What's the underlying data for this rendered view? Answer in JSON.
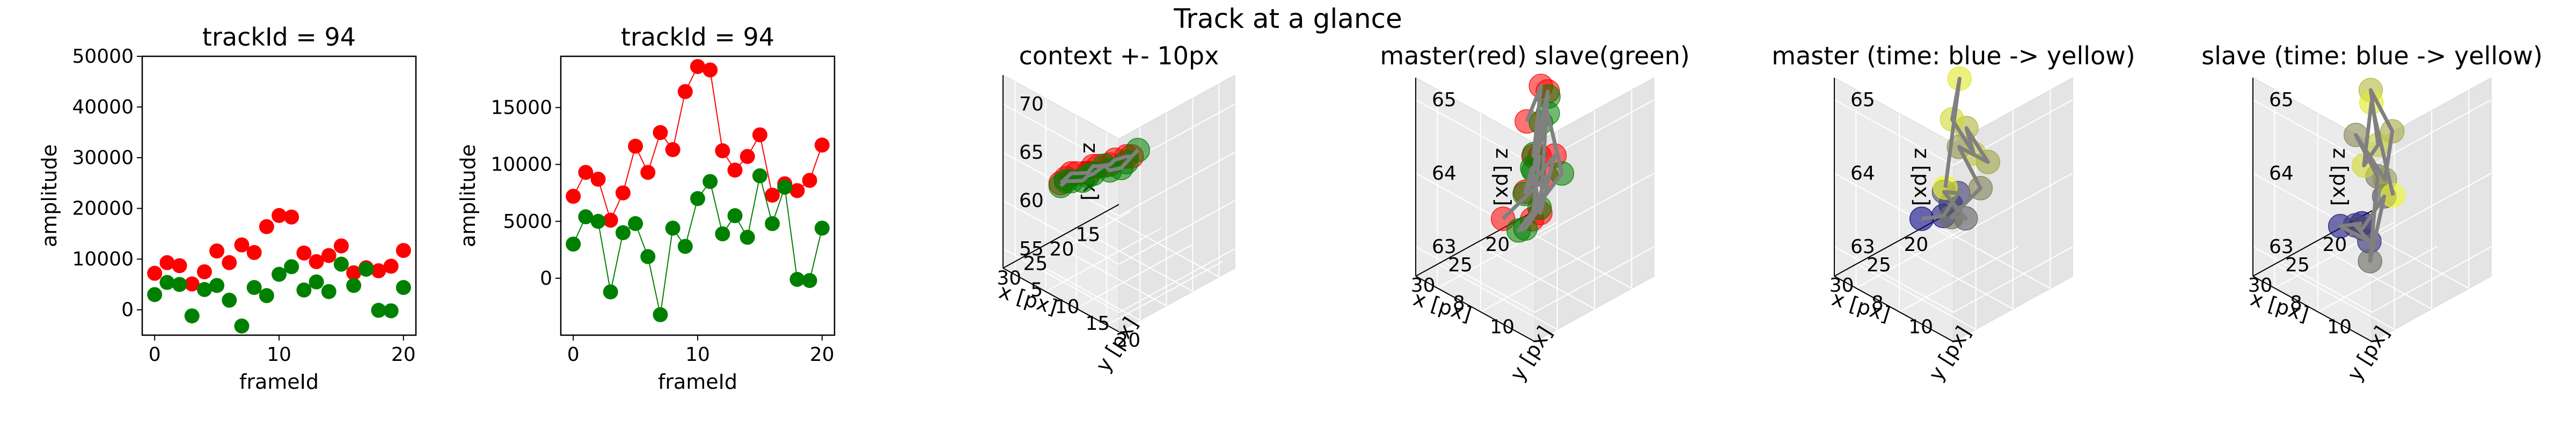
{
  "figure": {
    "suptitle": "Track at a glance"
  },
  "colors": {
    "master": "#ff0000",
    "slave": "#008000",
    "axis": "#000000",
    "pane": "#ebebeb",
    "line3d": "#808080"
  },
  "chart_data": [
    {
      "type": "scatter",
      "title": "trackId = 94",
      "xlabel": "frameId",
      "ylabel": "amplitude",
      "xlim": [
        -1,
        21
      ],
      "ylim": [
        -5000,
        50000
      ],
      "xticks": [
        "0",
        "10",
        "20"
      ],
      "yticks": [
        "0",
        "10000",
        "20000",
        "30000",
        "40000",
        "50000"
      ],
      "x": [
        0,
        1,
        2,
        3,
        4,
        5,
        6,
        7,
        8,
        9,
        10,
        11,
        12,
        13,
        14,
        15,
        16,
        17,
        18,
        19,
        20
      ],
      "series": [
        {
          "name": "master",
          "color": "#ff0000",
          "values": [
            7200,
            9300,
            8700,
            5100,
            7500,
            11600,
            9300,
            12800,
            11300,
            16400,
            18600,
            18300,
            11200,
            9500,
            10700,
            12600,
            7300,
            8300,
            7700,
            8600,
            11700
          ]
        },
        {
          "name": "slave",
          "color": "#008000",
          "values": [
            3000,
            5400,
            5000,
            -1200,
            4000,
            4800,
            1900,
            -3200,
            4400,
            2800,
            7000,
            8500,
            3900,
            5500,
            3600,
            9000,
            4800,
            8000,
            -100,
            -200,
            4400
          ]
        }
      ]
    },
    {
      "type": "line",
      "title": "trackId = 94",
      "xlabel": "frameId",
      "ylabel": "amplitude",
      "xlim": [
        -1,
        21
      ],
      "ylim": [
        -5000,
        19500
      ],
      "xticks": [
        "0",
        "10",
        "20"
      ],
      "yticks": [
        "0",
        "5000",
        "10000",
        "15000"
      ],
      "x": [
        0,
        1,
        2,
        3,
        4,
        5,
        6,
        7,
        8,
        9,
        10,
        11,
        12,
        13,
        14,
        15,
        16,
        17,
        18,
        19,
        20
      ],
      "series": [
        {
          "name": "master",
          "color": "#ff0000",
          "values": [
            7200,
            9300,
            8700,
            5100,
            7500,
            11600,
            9300,
            12800,
            11300,
            16400,
            18600,
            18300,
            11200,
            9500,
            10700,
            12600,
            7300,
            8300,
            7700,
            8600,
            11700
          ]
        },
        {
          "name": "slave",
          "color": "#008000",
          "values": [
            3000,
            5400,
            5000,
            -1200,
            4000,
            4800,
            1900,
            -3200,
            4400,
            2800,
            7000,
            8500,
            3900,
            5500,
            3600,
            9000,
            4800,
            8000,
            -100,
            -200,
            4400
          ]
        }
      ]
    },
    {
      "type": "scatter",
      "title": "context +- 10px",
      "xlabel": "x [px]",
      "ylabel": "y [px]",
      "zlabel": "z [px]",
      "xticks": [
        "15",
        "20",
        "25",
        "30"
      ],
      "yticks": [
        "5",
        "10",
        "15",
        "20"
      ],
      "zticks": [
        "55",
        "60",
        "65",
        "70"
      ],
      "xlim": [
        12,
        34
      ],
      "ylim": [
        3,
        22
      ],
      "zlim": [
        53,
        73
      ],
      "series": [
        {
          "name": "master",
          "color": "#ff0000",
          "points": [
            [
              20,
              12,
              63.5
            ],
            [
              21,
              12,
              63.8
            ],
            [
              22,
              11,
              63.4
            ],
            [
              23,
              11,
              63.2
            ],
            [
              24,
              10,
              63.0
            ],
            [
              25,
              10,
              63.3
            ],
            [
              26,
              10,
              62.9
            ],
            [
              27,
              9,
              62.8
            ],
            [
              28,
              9,
              63.1
            ],
            [
              29,
              9,
              62.9
            ],
            [
              30,
              9,
              62.7
            ]
          ]
        },
        {
          "name": "slave",
          "color": "#008000",
          "points": [
            [
              20,
              13,
              64.5
            ],
            [
              21,
              12,
              63.2
            ],
            [
              22,
              12,
              62.9
            ],
            [
              23,
              11,
              62.6
            ],
            [
              24,
              11,
              63.4
            ],
            [
              25,
              10,
              62.5
            ],
            [
              26,
              10,
              62.6
            ],
            [
              27,
              10,
              62.4
            ],
            [
              28,
              9,
              62.3
            ],
            [
              29,
              9,
              62.6
            ],
            [
              30,
              9,
              62.4
            ]
          ]
        }
      ]
    },
    {
      "type": "scatter",
      "title": "master(red) slave(green)",
      "xlabel": "x [px]",
      "ylabel": "y [px]",
      "zlabel": "z [px]",
      "xticks": [
        "20",
        "25",
        "30"
      ],
      "yticks": [
        "8",
        "10"
      ],
      "zticks": [
        "63",
        "64",
        "65"
      ],
      "xlim": [
        17,
        33
      ],
      "ylim": [
        7,
        12.5
      ],
      "zlim": [
        62.6,
        65.3
      ],
      "series": [
        {
          "name": "master",
          "color": "#ff0000",
          "points": [
            [
              21,
              8,
              64.2
            ],
            [
              22,
              9,
              64.9
            ],
            [
              23,
              9,
              64.0
            ],
            [
              24,
              10,
              65.1
            ],
            [
              25,
              10,
              63.5
            ],
            [
              26,
              11,
              64.5
            ],
            [
              27,
              10,
              63.9
            ],
            [
              28,
              11,
              64.6
            ],
            [
              29,
              11,
              63.8
            ],
            [
              30,
              12,
              64.6
            ],
            [
              30,
              10,
              63.7
            ]
          ]
        },
        {
          "name": "slave",
          "color": "#008000",
          "points": [
            [
              20,
              8,
              63.7
            ],
            [
              21,
              9,
              64.7
            ],
            [
              22,
              9,
              64.4
            ],
            [
              23,
              9,
              63.8
            ],
            [
              24,
              10,
              64.8
            ],
            [
              25,
              11,
              64.2
            ],
            [
              25,
              9,
              63.1
            ],
            [
              27,
              10,
              63.4
            ],
            [
              28,
              11,
              63.9
            ],
            [
              29,
              11,
              64.5
            ],
            [
              30,
              11,
              64.2
            ]
          ]
        }
      ]
    },
    {
      "type": "scatter",
      "title": "master (time: blue -> yellow)",
      "xlabel": "x [px]",
      "ylabel": "y [px]",
      "zlabel": "z [px]",
      "xticks": [
        "20",
        "25",
        "30"
      ],
      "yticks": [
        "8",
        "10"
      ],
      "zticks": [
        "63",
        "64",
        "65"
      ],
      "xlim": [
        17,
        33
      ],
      "ylim": [
        7,
        12.5
      ],
      "zlim": [
        62.6,
        65.3
      ],
      "color_start": "#0d0887",
      "color_end": "#f0f921",
      "points": [
        [
          30,
          10,
          63.7
        ],
        [
          30,
          11,
          63.9
        ],
        [
          29,
          11,
          64.0
        ],
        [
          28,
          11,
          64.1
        ],
        [
          27,
          10,
          63.9
        ],
        [
          27,
          11,
          63.7
        ],
        [
          26,
          10,
          63.5
        ],
        [
          25,
          11,
          64.0
        ],
        [
          25,
          10,
          64.4
        ],
        [
          24,
          11,
          64.3
        ],
        [
          24,
          10,
          64.6
        ],
        [
          23,
          10,
          64.2
        ],
        [
          23,
          9,
          64.5
        ],
        [
          22,
          9,
          65.0
        ],
        [
          21,
          8,
          63.3
        ]
      ]
    },
    {
      "type": "scatter",
      "title": "slave (time: blue -> yellow)",
      "xlabel": "x [px]",
      "ylabel": "y [px]",
      "zlabel": "z [px]",
      "xticks": [
        "20",
        "25",
        "30"
      ],
      "yticks": [
        "8",
        "10"
      ],
      "zticks": [
        "63",
        "64",
        "65"
      ],
      "xlim": [
        17,
        33
      ],
      "ylim": [
        7,
        12.5
      ],
      "zlim": [
        62.6,
        65.3
      ],
      "color_start": "#0d0887",
      "color_end": "#f0f921",
      "points": [
        [
          30,
          11,
          63.8
        ],
        [
          30,
          10,
          63.6
        ],
        [
          29,
          11,
          63.5
        ],
        [
          28,
          10,
          63.5
        ],
        [
          27,
          10,
          63.4
        ],
        [
          27,
          11,
          64.0
        ],
        [
          26,
          10,
          62.9
        ],
        [
          25,
          10,
          64.0
        ],
        [
          25,
          9,
          64.4
        ],
        [
          24,
          10,
          63.9
        ],
        [
          23,
          10,
          64.5
        ],
        [
          23,
          9,
          64.9
        ],
        [
          22,
          9,
          64.1
        ],
        [
          21,
          8,
          63.6
        ],
        [
          20,
          8,
          64.4
        ],
        [
          20,
          9,
          63.3
        ]
      ]
    }
  ]
}
